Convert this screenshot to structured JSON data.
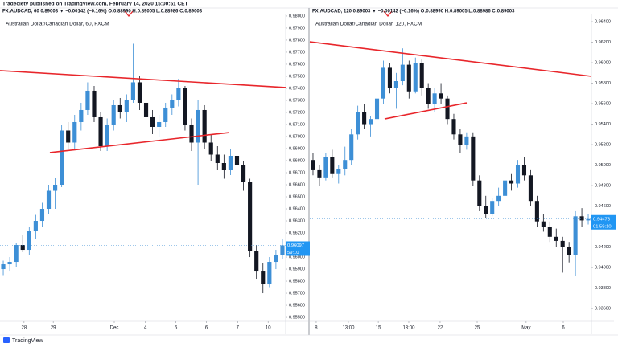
{
  "header": "Tradeciety published on TradingView.com, February 14, 2020 15:00:51 CET",
  "footer": "TradingView",
  "chart_data": [
    {
      "type": "candlestick",
      "symbol_line": "FX:AUDCAD, 60 0.89003 ▼ −0.00142 (−0.16%) O:0.88990 H:0.89005 L:0.88986 C:0.89003",
      "title": "Australian Dollar/Canadian Dollar, 60, FXCM",
      "up_color": "#3d8fd6",
      "down_color": "#131722",
      "ylim": [
        0.95467,
        0.98013
      ],
      "yticks": [
        {
          "value": 0.98,
          "label": "0.98000"
        },
        {
          "value": 0.979,
          "label": "0.97900"
        },
        {
          "value": 0.978,
          "label": "0.97800"
        },
        {
          "value": 0.977,
          "label": "0.97700"
        },
        {
          "value": 0.976,
          "label": "0.97600"
        },
        {
          "value": 0.975,
          "label": "0.97500"
        },
        {
          "value": 0.974,
          "label": "0.97400"
        },
        {
          "value": 0.973,
          "label": "0.97300"
        },
        {
          "value": 0.972,
          "label": "0.97200"
        },
        {
          "value": 0.971,
          "label": "0.97100"
        },
        {
          "value": 0.97,
          "label": "0.97000"
        },
        {
          "value": 0.969,
          "label": "0.96900"
        },
        {
          "value": 0.968,
          "label": "0.96800"
        },
        {
          "value": 0.967,
          "label": "0.96700"
        },
        {
          "value": 0.966,
          "label": "0.96600"
        },
        {
          "value": 0.965,
          "label": "0.96500"
        },
        {
          "value": 0.964,
          "label": "0.96400"
        },
        {
          "value": 0.963,
          "label": "0.96300"
        },
        {
          "value": 0.962,
          "label": "0.96200"
        },
        {
          "value": 0.961,
          "label": "0.96100"
        },
        {
          "value": 0.96,
          "label": "0.96000"
        },
        {
          "value": 0.959,
          "label": "0.95900"
        },
        {
          "value": 0.958,
          "label": "0.95800"
        },
        {
          "value": 0.957,
          "label": "0.95700"
        },
        {
          "value": 0.956,
          "label": "0.95600"
        },
        {
          "value": 0.955,
          "label": "0.95500"
        }
      ],
      "xlim": [
        -0.5,
        43.5
      ],
      "xticks": [
        {
          "value": 3.2,
          "label": "28"
        },
        {
          "value": 7.7,
          "label": "29"
        },
        {
          "value": 17.1,
          "label": "Dec"
        },
        {
          "value": 21.9,
          "label": "4"
        },
        {
          "value": 26.6,
          "label": "5"
        },
        {
          "value": 31.3,
          "label": "6"
        },
        {
          "value": 36.1,
          "label": "7"
        },
        {
          "value": 40.8,
          "label": "10"
        }
      ],
      "last_price": 0.96097,
      "countdown": "59:10",
      "trendlines": [
        {
          "color": "#e8262b",
          "x": [
            -0.5,
            43.5
          ],
          "y": [
            0.97547,
            0.97407
          ]
        },
        {
          "color": "#e8262b",
          "x": [
            7.18,
            34.8
          ],
          "y": [
            0.96867,
            0.97033
          ]
        }
      ],
      "candles": [
        [
          0.959,
          0.9597,
          0.9585,
          0.9594
        ],
        [
          0.9594,
          0.96,
          0.9588,
          0.9596
        ],
        [
          0.9596,
          0.9612,
          0.9592,
          0.961
        ],
        [
          0.961,
          0.9618,
          0.9604,
          0.9606
        ],
        [
          0.9606,
          0.9625,
          0.9602,
          0.9622
        ],
        [
          0.9622,
          0.9635,
          0.9615,
          0.963
        ],
        [
          0.963,
          0.9645,
          0.9625,
          0.964
        ],
        [
          0.964,
          0.966,
          0.9636,
          0.9655
        ],
        [
          0.9655,
          0.9666,
          0.964,
          0.966
        ],
        [
          0.966,
          0.971,
          0.9658,
          0.9705
        ],
        [
          0.9705,
          0.9712,
          0.969,
          0.9695
        ],
        [
          0.9695,
          0.9718,
          0.969,
          0.9712
        ],
        [
          0.9712,
          0.9728,
          0.9705,
          0.9722
        ],
        [
          0.9722,
          0.9745,
          0.9718,
          0.9738
        ],
        [
          0.9738,
          0.9742,
          0.9712,
          0.9716
        ],
        [
          0.9716,
          0.972,
          0.9688,
          0.9692
        ],
        [
          0.9692,
          0.9715,
          0.9688,
          0.971
        ],
        [
          0.971,
          0.973,
          0.9705,
          0.9726
        ],
        [
          0.9726,
          0.9732,
          0.9715,
          0.972
        ],
        [
          0.972,
          0.9735,
          0.9712,
          0.973
        ],
        [
          0.973,
          0.9777,
          0.9728,
          0.9745
        ],
        [
          0.9745,
          0.975,
          0.9722,
          0.9728
        ],
        [
          0.9728,
          0.9735,
          0.9712,
          0.9716
        ],
        [
          0.9716,
          0.9722,
          0.9702,
          0.9708
        ],
        [
          0.9708,
          0.9718,
          0.97,
          0.9712
        ],
        [
          0.9712,
          0.9728,
          0.9708,
          0.9724
        ],
        [
          0.9724,
          0.9735,
          0.9718,
          0.973
        ],
        [
          0.973,
          0.9748,
          0.9725,
          0.974
        ],
        [
          0.974,
          0.9742,
          0.9705,
          0.971
        ],
        [
          0.971,
          0.9715,
          0.9688,
          0.9695
        ],
        [
          0.9695,
          0.973,
          0.966,
          0.9722
        ],
        [
          0.9722,
          0.9726,
          0.969,
          0.9695
        ],
        [
          0.9695,
          0.9702,
          0.968,
          0.9685
        ],
        [
          0.9685,
          0.9692,
          0.9672,
          0.9678
        ],
        [
          0.9678,
          0.9685,
          0.9665,
          0.9672
        ],
        [
          0.9672,
          0.969,
          0.9668,
          0.9684
        ],
        [
          0.9684,
          0.9688,
          0.967,
          0.9676
        ],
        [
          0.9676,
          0.968,
          0.9655,
          0.9662
        ],
        [
          0.9662,
          0.9665,
          0.96,
          0.9605
        ],
        [
          0.9605,
          0.961,
          0.9582,
          0.9588
        ],
        [
          0.9588,
          0.9595,
          0.957,
          0.9578
        ],
        [
          0.9578,
          0.96,
          0.9575,
          0.9596
        ],
        [
          0.9596,
          0.9606,
          0.959,
          0.9602
        ],
        [
          0.9602,
          0.9615,
          0.9598,
          0.96097
        ]
      ]
    },
    {
      "type": "candlestick",
      "symbol_line": "FX:AUDCAD, 120 0.89003 ▼ −0.00142 (−0.16%) O:0.88990 H:0.89005 L:0.88986 C:0.89003",
      "title": "Australian Dollar/Canadian Dollar, 120, FXCM",
      "up_color": "#3d8fd6",
      "down_color": "#131722",
      "ylim": [
        0.93475,
        0.96471
      ],
      "yticks": [
        {
          "value": 0.964,
          "label": "0.96400"
        },
        {
          "value": 0.962,
          "label": "0.96200"
        },
        {
          "value": 0.96,
          "label": "0.96000"
        },
        {
          "value": 0.958,
          "label": "0.95800"
        },
        {
          "value": 0.956,
          "label": "0.95600"
        },
        {
          "value": 0.954,
          "label": "0.95400"
        },
        {
          "value": 0.952,
          "label": "0.95200"
        },
        {
          "value": 0.95,
          "label": "0.95000"
        },
        {
          "value": 0.948,
          "label": "0.94800"
        },
        {
          "value": 0.946,
          "label": "0.94600"
        },
        {
          "value": 0.944,
          "label": "0.94400"
        },
        {
          "value": 0.942,
          "label": "0.94200"
        },
        {
          "value": 0.94,
          "label": "0.94000"
        },
        {
          "value": 0.938,
          "label": "0.93800"
        },
        {
          "value": 0.936,
          "label": "0.93600"
        }
      ],
      "xlim": [
        -0.5,
        43.5
      ],
      "xticks": [
        {
          "value": 0.5,
          "label": "8"
        },
        {
          "value": 5.53,
          "label": "13:00"
        },
        {
          "value": 10.2,
          "label": "15"
        },
        {
          "value": 14.96,
          "label": "13:00"
        },
        {
          "value": 19.86,
          "label": "22"
        },
        {
          "value": 25.65,
          "label": "25"
        },
        {
          "value": 33.3,
          "label": "May"
        },
        {
          "value": 39.1,
          "label": "6"
        }
      ],
      "last_price": 0.94473,
      "countdown": "01:59:10",
      "trendlines": [
        {
          "color": "#e8262b",
          "x": [
            -0.5,
            43.5
          ],
          "y": [
            0.96204,
            0.95867
          ]
        },
        {
          "color": "#e8262b",
          "x": [
            11.19,
            24.01
          ],
          "y": [
            0.95451,
            0.95608
          ]
        }
      ],
      "candles": [
        [
          0.9505,
          0.9512,
          0.949,
          0.9495
        ],
        [
          0.9495,
          0.95,
          0.948,
          0.9488
        ],
        [
          0.9488,
          0.9512,
          0.9485,
          0.9508
        ],
        [
          0.9508,
          0.9515,
          0.9488,
          0.9492
        ],
        [
          0.9492,
          0.95,
          0.9482,
          0.9496
        ],
        [
          0.9496,
          0.9518,
          0.949,
          0.9505
        ],
        [
          0.9505,
          0.9535,
          0.95,
          0.953
        ],
        [
          0.953,
          0.9558,
          0.9525,
          0.9552
        ],
        [
          0.9552,
          0.956,
          0.9535,
          0.954
        ],
        [
          0.954,
          0.9548,
          0.9528,
          0.9545
        ],
        [
          0.9545,
          0.957,
          0.9542,
          0.9565
        ],
        [
          0.9565,
          0.9602,
          0.956,
          0.9595
        ],
        [
          0.9595,
          0.96,
          0.957,
          0.9575
        ],
        [
          0.9575,
          0.959,
          0.9555,
          0.9582
        ],
        [
          0.9582,
          0.9614,
          0.9578,
          0.9598
        ],
        [
          0.9598,
          0.9602,
          0.9565,
          0.9572
        ],
        [
          0.9572,
          0.9605,
          0.957,
          0.96
        ],
        [
          0.96,
          0.9603,
          0.9568,
          0.9575
        ],
        [
          0.9575,
          0.958,
          0.9555,
          0.956
        ],
        [
          0.956,
          0.9575,
          0.9552,
          0.957
        ],
        [
          0.957,
          0.958,
          0.956,
          0.9565
        ],
        [
          0.9565,
          0.9568,
          0.954,
          0.9545
        ],
        [
          0.9545,
          0.955,
          0.9525,
          0.953
        ],
        [
          0.953,
          0.9535,
          0.9512,
          0.952
        ],
        [
          0.952,
          0.9532,
          0.9515,
          0.9528
        ],
        [
          0.9528,
          0.9532,
          0.948,
          0.9485
        ],
        [
          0.9485,
          0.949,
          0.9455,
          0.946
        ],
        [
          0.946,
          0.947,
          0.9448,
          0.9452
        ],
        [
          0.9452,
          0.9468,
          0.945,
          0.9465
        ],
        [
          0.9465,
          0.9478,
          0.946,
          0.947
        ],
        [
          0.947,
          0.949,
          0.9465,
          0.9485
        ],
        [
          0.9485,
          0.9492,
          0.9475,
          0.9482
        ],
        [
          0.9482,
          0.9505,
          0.9478,
          0.95
        ],
        [
          0.95,
          0.9508,
          0.9485,
          0.949
        ],
        [
          0.949,
          0.9495,
          0.946,
          0.9465
        ],
        [
          0.9465,
          0.947,
          0.944,
          0.9445
        ],
        [
          0.9445,
          0.9452,
          0.9435,
          0.944
        ],
        [
          0.944,
          0.9445,
          0.9425,
          0.943
        ],
        [
          0.943,
          0.9438,
          0.942,
          0.9426
        ],
        [
          0.9426,
          0.943,
          0.9395,
          0.942
        ],
        [
          0.942,
          0.9425,
          0.9405,
          0.9412
        ],
        [
          0.9412,
          0.9455,
          0.9392,
          0.945
        ],
        [
          0.945,
          0.9458,
          0.944,
          0.9446
        ],
        [
          0.9446,
          0.9452,
          0.9442,
          0.94473
        ]
      ]
    }
  ]
}
